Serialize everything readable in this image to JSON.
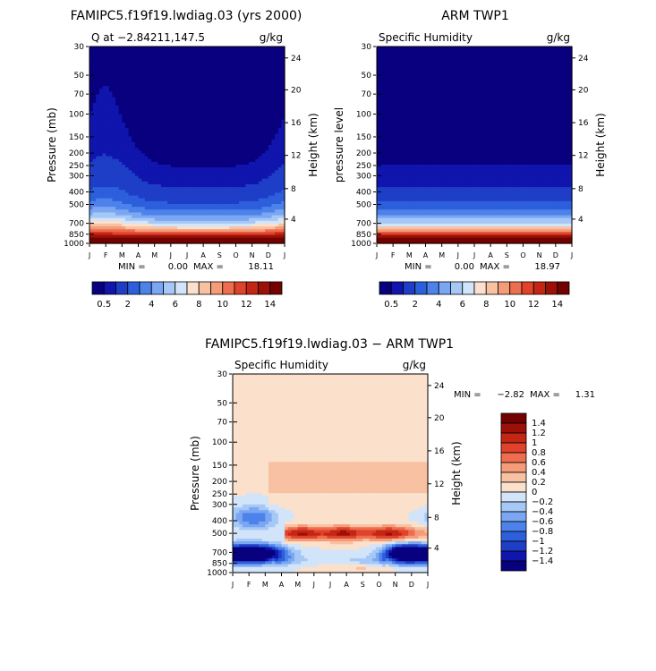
{
  "colors": {
    "seq": [
      "#08007e",
      "#0f15ad",
      "#1e3ec8",
      "#2d5fdc",
      "#4d82ea",
      "#7aa6f2",
      "#a6c8f7",
      "#d2e4f9",
      "#fbe0cc",
      "#f8c1a2",
      "#f49b78",
      "#ee6d4e",
      "#e0422b",
      "#c42615",
      "#9c1008",
      "#720200"
    ],
    "diff": [
      "#08007e",
      "#0f15ad",
      "#1e3ec8",
      "#2d5fdc",
      "#4d82ea",
      "#7aa6f2",
      "#a6c8f7",
      "#d2e4f9",
      "#fbe0cc",
      "#f8c1a2",
      "#f49b78",
      "#ee6d4e",
      "#e0422b",
      "#c42615",
      "#9c1008",
      "#720200"
    ]
  },
  "chart_data": [
    {
      "type": "heatmap",
      "title": "FAMIPC5.f19f19.lwdiag.03 (yrs 2000)",
      "subtitle_left": "Q at −2.84211,147.5",
      "subtitle_right": "g/kg",
      "ylabel": "Pressure (mb)",
      "ylabel_right": "Height (km)",
      "x_ticks": [
        "J",
        "F",
        "M",
        "A",
        "M",
        "J",
        "J",
        "A",
        "S",
        "O",
        "N",
        "D",
        "J"
      ],
      "y_ticks": [
        "30",
        "50",
        "70",
        "100",
        "150",
        "200",
        "250",
        "300",
        "400",
        "500",
        "700",
        "850",
        "1000"
      ],
      "y_ticks_right": [
        "24",
        "20",
        "16",
        "12",
        "8",
        "4"
      ],
      "min_label": "MIN =",
      "min_value": "0.00",
      "max_label": "MAX =",
      "max_value": "18.11",
      "colorbar_labels": [
        "0.5",
        "2",
        "4",
        "6",
        "8",
        "10",
        "12",
        "14"
      ],
      "levels": [
        0.5,
        1,
        2,
        3,
        4,
        5,
        6,
        7,
        8,
        9,
        10,
        11,
        12,
        13,
        14
      ],
      "model": "single"
    },
    {
      "type": "heatmap",
      "title": "ARM TWP1",
      "subtitle_left": "Specific Humidity",
      "subtitle_right": "g/kg",
      "ylabel": "pressure level",
      "ylabel_right": "Height (km)",
      "x_ticks": [
        "J",
        "F",
        "M",
        "A",
        "M",
        "J",
        "J",
        "A",
        "S",
        "O",
        "N",
        "D",
        "J"
      ],
      "y_ticks": [
        "30",
        "50",
        "70",
        "100",
        "150",
        "200",
        "250",
        "300",
        "400",
        "500",
        "700",
        "850",
        "1000"
      ],
      "y_ticks_right": [
        "24",
        "20",
        "16",
        "12",
        "8",
        "4"
      ],
      "min_label": "MIN =",
      "min_value": "0.00",
      "max_label": "MAX =",
      "max_value": "18.97",
      "colorbar_labels": [
        "0.5",
        "2",
        "4",
        "6",
        "8",
        "10",
        "12",
        "14"
      ],
      "levels": [
        0.5,
        1,
        2,
        3,
        4,
        5,
        6,
        7,
        8,
        9,
        10,
        11,
        12,
        13,
        14
      ],
      "model": "obs"
    },
    {
      "type": "heatmap",
      "title": "FAMIPC5.f19f19.lwdiag.03 − ARM TWP1",
      "subtitle_left": "Specific Humidity",
      "subtitle_right": "g/kg",
      "ylabel": "Pressure (mb)",
      "ylabel_right": "Height (km)",
      "x_ticks": [
        "J",
        "F",
        "M",
        "A",
        "M",
        "J",
        "J",
        "A",
        "S",
        "O",
        "N",
        "D",
        "J"
      ],
      "y_ticks": [
        "30",
        "50",
        "70",
        "100",
        "150",
        "200",
        "250",
        "300",
        "400",
        "500",
        "700",
        "850",
        "1000"
      ],
      "y_ticks_right": [
        "24",
        "20",
        "16",
        "12",
        "8",
        "4"
      ],
      "min_label": "MIN =",
      "min_value": "−2.82",
      "max_label": "MAX =",
      "max_value": "1.31",
      "colorbar_labels": [
        "1.4",
        "1.2",
        "1",
        "0.8",
        "0.6",
        "0.4",
        "0.2",
        "0",
        "−0.2",
        "−0.4",
        "−0.6",
        "−0.8",
        "−1",
        "−1.2",
        "−1.4"
      ],
      "levels": [
        -1.4,
        -1.2,
        -1,
        -0.8,
        -0.6,
        -0.4,
        -0.2,
        0,
        0.2,
        0.4,
        0.6,
        0.8,
        1,
        1.2,
        1.4
      ],
      "model": "diff"
    }
  ]
}
